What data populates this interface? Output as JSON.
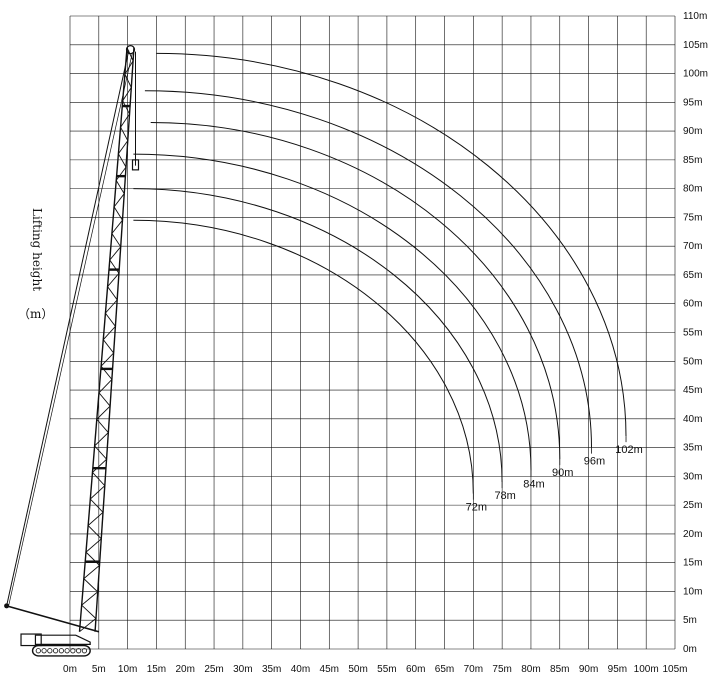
{
  "figure": {
    "y_axis_label": "Lifting height",
    "y_axis_unit": "（m）",
    "x_ticks": [
      "0m",
      "5m",
      "10m",
      "15m",
      "20m",
      "25m",
      "30m",
      "35m",
      "40m",
      "45m",
      "50m",
      "55m",
      "60m",
      "65m",
      "70m",
      "75m",
      "80m",
      "85m",
      "90m",
      "95m",
      "100m",
      "105m"
    ],
    "y_ticks": [
      "0m",
      "5m",
      "10m",
      "15m",
      "20m",
      "25m",
      "30m",
      "35m",
      "40m",
      "45m",
      "50m",
      "55m",
      "60m",
      "65m",
      "70m",
      "75m",
      "80m",
      "85m",
      "90m",
      "95m",
      "100m",
      "105m",
      "110m"
    ],
    "x_range": [
      0,
      105
    ],
    "y_range": [
      0,
      110
    ],
    "grid": true,
    "line_color": "#111111",
    "boom_foot": [
      3,
      3
    ],
    "boom_head": [
      10.5,
      104.5
    ],
    "curves": [
      {
        "label": "72m",
        "start": [
          11,
          74.5
        ],
        "end": [
          70,
          27
        ]
      },
      {
        "label": "78m",
        "start": [
          11,
          80
        ],
        "end": [
          75,
          29
        ]
      },
      {
        "label": "84m",
        "start": [
          11,
          86
        ],
        "end": [
          80,
          31
        ]
      },
      {
        "label": "90m",
        "start": [
          14,
          91.5
        ],
        "end": [
          85,
          33
        ]
      },
      {
        "label": "96m",
        "start": [
          13,
          97
        ],
        "end": [
          90.5,
          35
        ]
      },
      {
        "label": "102m",
        "start": [
          15,
          103.5
        ],
        "end": [
          96.5,
          37
        ]
      }
    ]
  }
}
